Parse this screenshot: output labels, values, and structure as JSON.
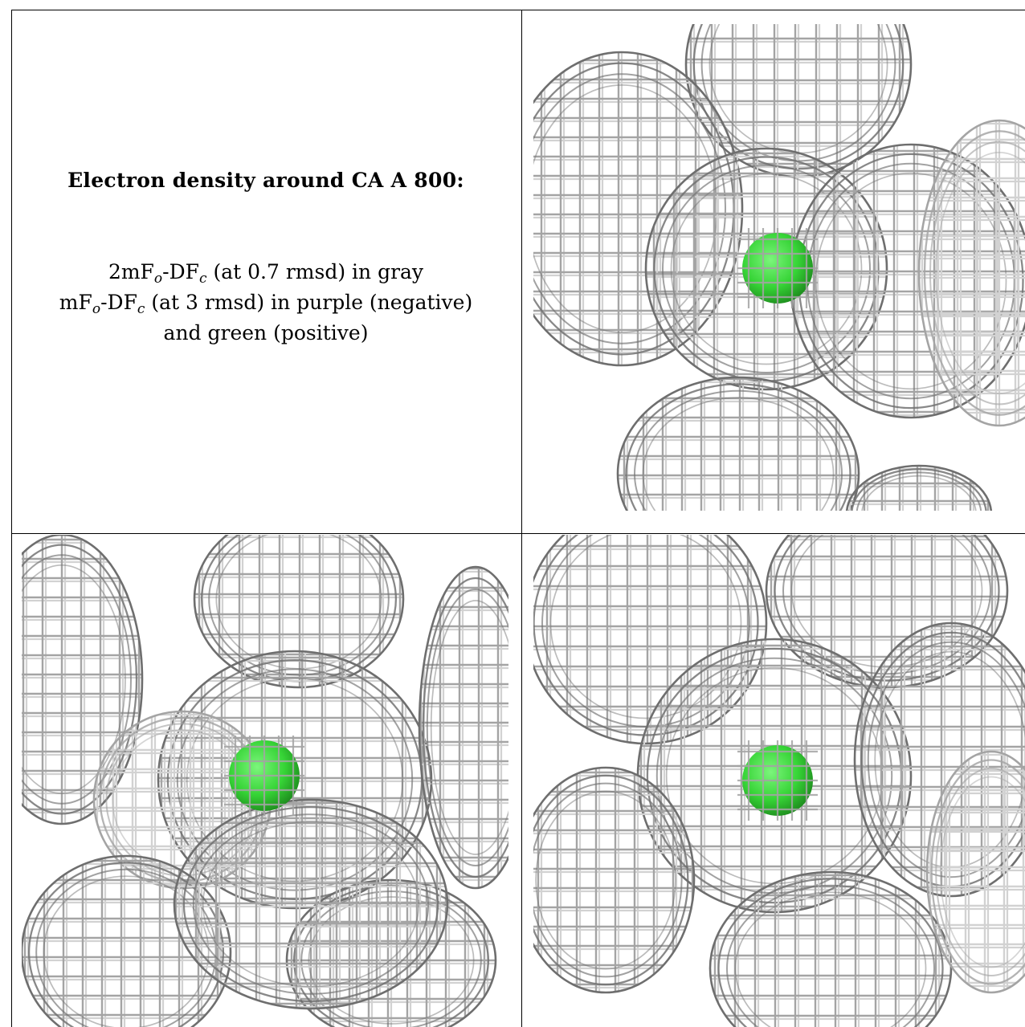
{
  "caption": {
    "title": "Electron density around CA A 800:",
    "line1": {
      "prefix": "2mF",
      "sub1": "o",
      "mid": "-DF",
      "sub2": "c",
      "suffix": " (at 0.7 rmsd) in gray"
    },
    "line2": {
      "prefix": "mF",
      "sub1": "o",
      "mid": "-DF",
      "sub2": "c",
      "suffix": " (at 3 rmsd) in purple (negative)"
    },
    "line3": "and green (positive)"
  },
  "colors": {
    "mesh_dark": "#6e6e6e",
    "mesh_mid": "#a4a4a4",
    "mesh_light": "#d2d2d2",
    "atom": "#36d436",
    "atom_dark": "#1f8f1f"
  },
  "panels": [
    {
      "name": "view-top-right"
    },
    {
      "name": "view-bottom-left"
    },
    {
      "name": "view-bottom-right"
    }
  ]
}
